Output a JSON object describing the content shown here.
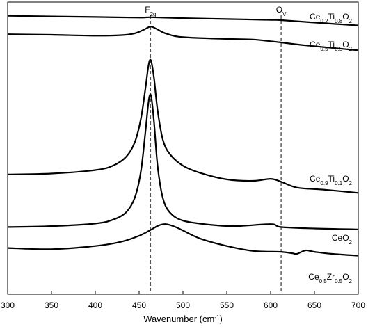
{
  "chart_data": {
    "type": "line",
    "xlabel": "Wavenumber (cm-1)",
    "xlabel_parts": {
      "text": "Wavenumber (cm",
      "sup": "-1",
      "close": ")"
    },
    "xlim": [
      300,
      700
    ],
    "x_ticks": [
      300,
      350,
      400,
      450,
      500,
      550,
      600,
      650,
      700
    ],
    "y_axis": "arbitrary intensity, stacked spectra, no tick labels",
    "grid": false,
    "reference_lines": [
      {
        "label": "F2g",
        "label_parts": [
          {
            "t": "F",
            "sub": false
          },
          {
            "t": "2g",
            "sub": true
          }
        ],
        "x": 463
      },
      {
        "label": "OV",
        "label_parts": [
          {
            "t": "O",
            "sub": false
          },
          {
            "t": "V",
            "sub": true
          }
        ],
        "x": 612
      }
    ],
    "series": [
      {
        "name": "Ce0.2Ti0.8O2",
        "label_parts": [
          {
            "t": "Ce",
            "sub": false
          },
          {
            "t": "0.2",
            "sub": true
          },
          {
            "t": "Ti",
            "sub": false
          },
          {
            "t": "0.8",
            "sub": true
          },
          {
            "t": "O",
            "sub": false
          },
          {
            "t": "2",
            "sub": true
          }
        ],
        "points": [
          [
            300,
            0.953
          ],
          [
            350,
            0.951
          ],
          [
            400,
            0.949
          ],
          [
            450,
            0.947
          ],
          [
            463,
            0.948
          ],
          [
            500,
            0.945
          ],
          [
            550,
            0.942
          ],
          [
            600,
            0.939
          ],
          [
            612,
            0.938
          ],
          [
            650,
            0.93
          ],
          [
            700,
            0.92
          ]
        ]
      },
      {
        "name": "Ce0.5Ti0.5O2",
        "label_parts": [
          {
            "t": "Ce",
            "sub": false
          },
          {
            "t": "0.5",
            "sub": true
          },
          {
            "t": "Ti",
            "sub": false
          },
          {
            "t": "0.5",
            "sub": true
          },
          {
            "t": "O",
            "sub": false
          },
          {
            "t": "2",
            "sub": true
          }
        ],
        "points": [
          [
            300,
            0.89
          ],
          [
            350,
            0.888
          ],
          [
            400,
            0.885
          ],
          [
            430,
            0.887
          ],
          [
            445,
            0.893
          ],
          [
            455,
            0.905
          ],
          [
            463,
            0.916
          ],
          [
            470,
            0.908
          ],
          [
            480,
            0.893
          ],
          [
            500,
            0.88
          ],
          [
            550,
            0.874
          ],
          [
            580,
            0.872
          ],
          [
            600,
            0.866
          ],
          [
            612,
            0.862
          ],
          [
            640,
            0.852
          ],
          [
            700,
            0.835
          ]
        ]
      },
      {
        "name": "Ce0.9Ti0.1O2",
        "label_parts": [
          {
            "t": "Ce",
            "sub": false
          },
          {
            "t": "0.9",
            "sub": true
          },
          {
            "t": "Ti",
            "sub": false
          },
          {
            "t": "0.1",
            "sub": true
          },
          {
            "t": "O",
            "sub": false
          },
          {
            "t": "2",
            "sub": true
          }
        ],
        "points": [
          [
            300,
            0.41
          ],
          [
            350,
            0.413
          ],
          [
            400,
            0.425
          ],
          [
            420,
            0.44
          ],
          [
            435,
            0.47
          ],
          [
            445,
            0.52
          ],
          [
            452,
            0.6
          ],
          [
            457,
            0.7
          ],
          [
            460,
            0.77
          ],
          [
            462,
            0.8
          ],
          [
            464,
            0.795
          ],
          [
            467,
            0.74
          ],
          [
            471,
            0.63
          ],
          [
            477,
            0.53
          ],
          [
            485,
            0.48
          ],
          [
            500,
            0.44
          ],
          [
            520,
            0.415
          ],
          [
            550,
            0.393
          ],
          [
            580,
            0.388
          ],
          [
            600,
            0.395
          ],
          [
            612,
            0.385
          ],
          [
            630,
            0.365
          ],
          [
            660,
            0.358
          ],
          [
            700,
            0.347
          ]
        ]
      },
      {
        "name": "CeO2",
        "label_parts": [
          {
            "t": "CeO",
            "sub": false
          },
          {
            "t": "2",
            "sub": true
          }
        ],
        "points": [
          [
            300,
            0.23
          ],
          [
            350,
            0.233
          ],
          [
            400,
            0.242
          ],
          [
            420,
            0.255
          ],
          [
            435,
            0.28
          ],
          [
            445,
            0.33
          ],
          [
            452,
            0.42
          ],
          [
            457,
            0.55
          ],
          [
            460,
            0.64
          ],
          [
            462,
            0.68
          ],
          [
            464,
            0.673
          ],
          [
            467,
            0.59
          ],
          [
            471,
            0.44
          ],
          [
            477,
            0.33
          ],
          [
            485,
            0.28
          ],
          [
            500,
            0.252
          ],
          [
            530,
            0.238
          ],
          [
            560,
            0.233
          ],
          [
            600,
            0.24
          ],
          [
            612,
            0.23
          ],
          [
            650,
            0.225
          ],
          [
            700,
            0.222
          ]
        ]
      },
      {
        "name": "Ce0.5Zr0.5O2",
        "label_parts": [
          {
            "t": "Ce",
            "sub": false
          },
          {
            "t": "0.5",
            "sub": true
          },
          {
            "t": "Zr",
            "sub": false
          },
          {
            "t": "0.5",
            "sub": true
          },
          {
            "t": "O",
            "sub": false
          },
          {
            "t": "2",
            "sub": true
          }
        ],
        "points": [
          [
            300,
            0.158
          ],
          [
            350,
            0.154
          ],
          [
            400,
            0.165
          ],
          [
            430,
            0.18
          ],
          [
            450,
            0.2
          ],
          [
            463,
            0.22
          ],
          [
            472,
            0.235
          ],
          [
            480,
            0.24
          ],
          [
            490,
            0.232
          ],
          [
            500,
            0.218
          ],
          [
            520,
            0.19
          ],
          [
            550,
            0.165
          ],
          [
            580,
            0.148
          ],
          [
            612,
            0.145
          ],
          [
            625,
            0.14
          ],
          [
            630,
            0.138
          ],
          [
            640,
            0.15
          ],
          [
            650,
            0.145
          ],
          [
            670,
            0.138
          ],
          [
            700,
            0.132
          ]
        ]
      }
    ]
  }
}
